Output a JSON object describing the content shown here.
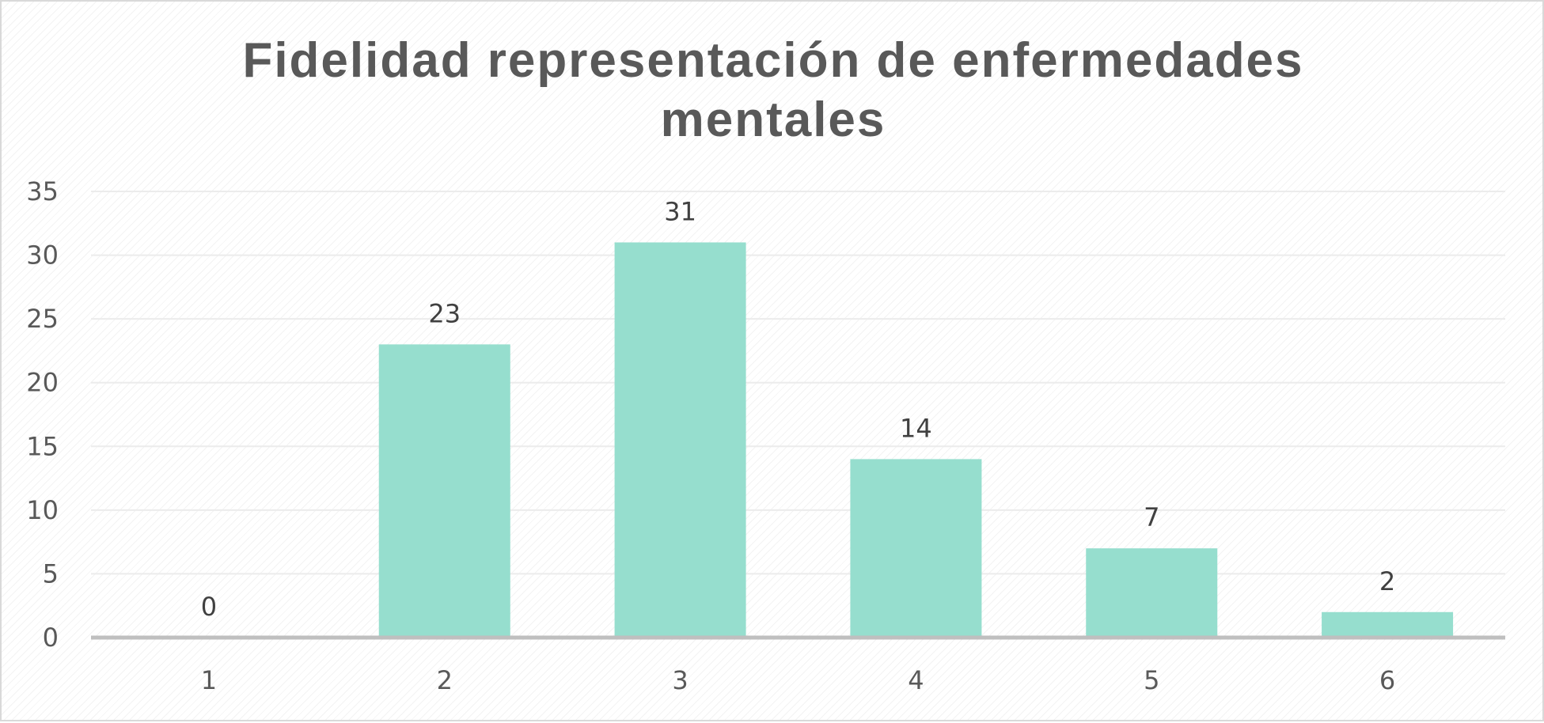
{
  "chart_data": {
    "type": "bar",
    "title_lines": [
      "Fidelidad representación de enfermedades",
      "mentales"
    ],
    "categories": [
      "1",
      "2",
      "3",
      "4",
      "5",
      "6"
    ],
    "values": [
      0,
      23,
      31,
      14,
      7,
      2
    ],
    "data_labels": [
      "0",
      "23",
      "31",
      "14",
      "7",
      "2"
    ],
    "yticks": [
      0,
      5,
      10,
      15,
      20,
      25,
      30,
      35
    ],
    "ylim": [
      0,
      35
    ],
    "xlabel": "",
    "ylabel": "",
    "grid": true,
    "legend": "none",
    "colors": {
      "bar": "#96dece",
      "gridline": "#ececec",
      "axis": "#bfbfbf"
    }
  }
}
